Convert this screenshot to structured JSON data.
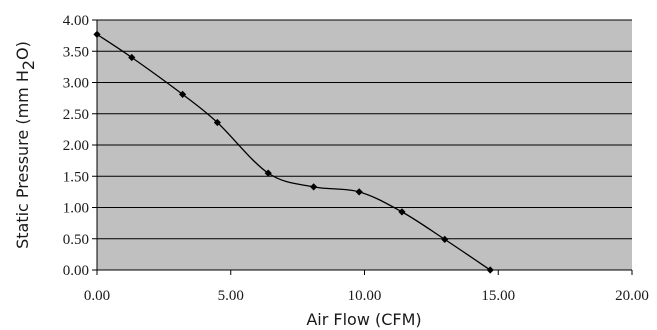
{
  "chart_data": {
    "type": "line",
    "xlabel": "Air Flow (CFM)",
    "ylabel": {
      "main": "Static Pressure (mm H",
      "sub": "2",
      "end": "O)"
    },
    "xlim": [
      0,
      20
    ],
    "ylim": [
      0,
      4
    ],
    "x_ticks": [
      "0.00",
      "5.00",
      "10.00",
      "15.00",
      "20.00"
    ],
    "y_ticks": [
      "0.00",
      "0.50",
      "1.00",
      "1.50",
      "2.00",
      "2.50",
      "3.00",
      "3.50",
      "4.00"
    ],
    "grid": "horizontal",
    "plot_background": "#c0c0c0",
    "line_color": "#000000",
    "series": [
      {
        "x": [
          0.0,
          1.3,
          3.2,
          4.5,
          6.4,
          8.1,
          9.8,
          11.4,
          13.0,
          14.7
        ],
        "y": [
          3.77,
          3.4,
          2.81,
          2.36,
          1.55,
          1.33,
          1.25,
          0.93,
          0.49,
          0.0
        ]
      }
    ]
  }
}
